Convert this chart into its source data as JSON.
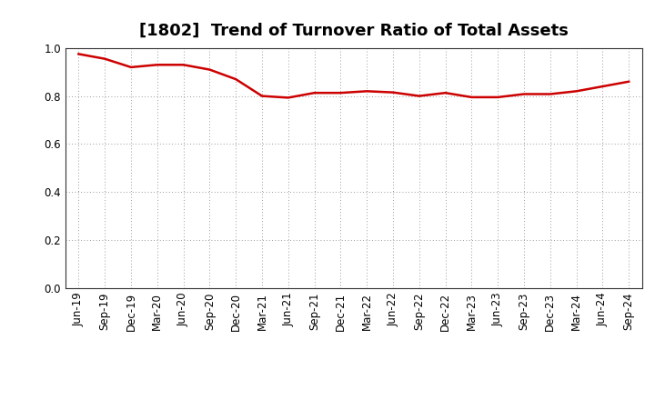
{
  "title": "[1802]  Trend of Turnover Ratio of Total Assets",
  "x_labels": [
    "Jun-19",
    "Sep-19",
    "Dec-19",
    "Mar-20",
    "Jun-20",
    "Sep-20",
    "Dec-20",
    "Mar-21",
    "Jun-21",
    "Sep-21",
    "Dec-21",
    "Mar-22",
    "Jun-22",
    "Sep-22",
    "Dec-22",
    "Mar-23",
    "Jun-23",
    "Sep-23",
    "Dec-23",
    "Mar-24",
    "Jun-24",
    "Sep-24"
  ],
  "values": [
    0.975,
    0.955,
    0.92,
    0.93,
    0.93,
    0.91,
    0.87,
    0.8,
    0.793,
    0.813,
    0.813,
    0.82,
    0.815,
    0.8,
    0.813,
    0.795,
    0.795,
    0.808,
    0.808,
    0.82,
    0.84,
    0.86
  ],
  "line_color": "#cc0000",
  "line_width": 1.8,
  "ylim": [
    0.0,
    1.0
  ],
  "yticks": [
    0.0,
    0.2,
    0.4,
    0.6,
    0.8,
    1.0
  ],
  "grid_color": "#777777",
  "background_color": "#ffffff",
  "title_fontsize": 13,
  "tick_fontsize": 8.5,
  "spine_color": "#333333"
}
